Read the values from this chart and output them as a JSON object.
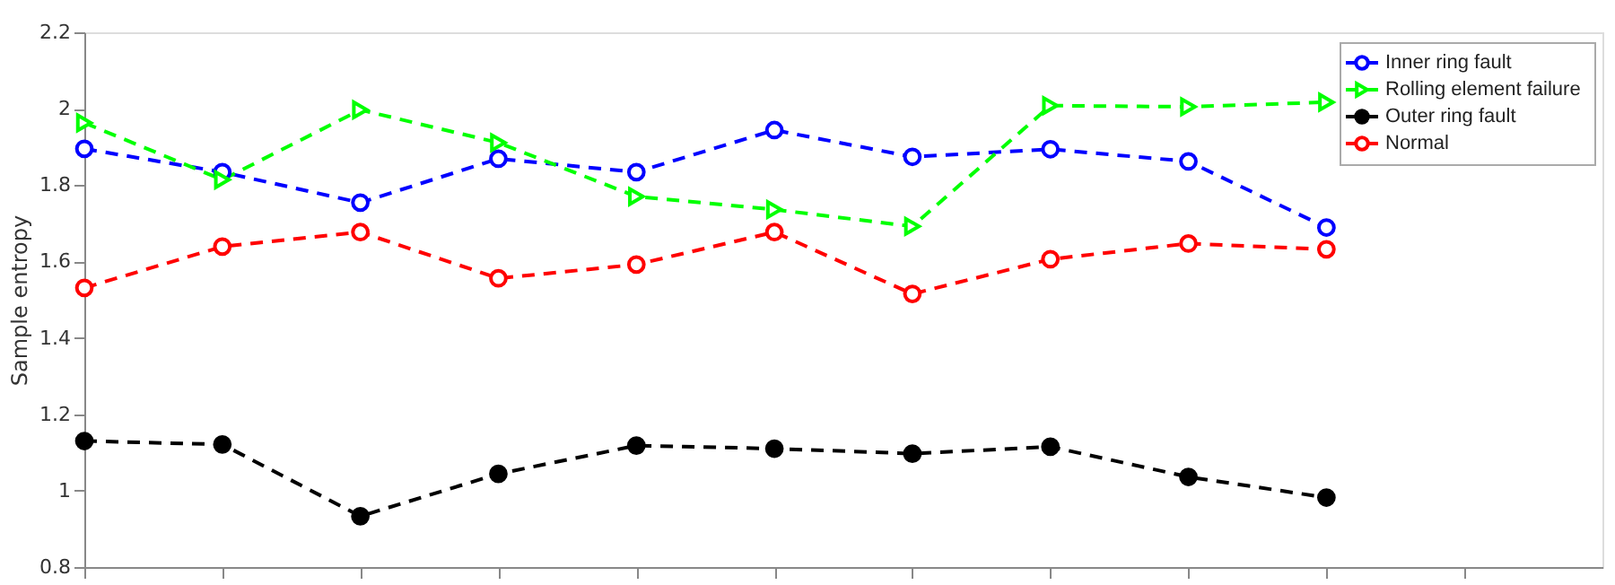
{
  "chart_data": {
    "type": "line",
    "ylabel": "Sample entropy",
    "categories": [
      null,
      null,
      null,
      null,
      null,
      null,
      null,
      null,
      null,
      null
    ],
    "ylim": [
      0.8,
      2.2
    ],
    "yticks": [
      0.8,
      1,
      1.2,
      1.4,
      1.6,
      1.8,
      2,
      2.2
    ],
    "tick_labels": "y",
    "legend": "top right",
    "line_style": "dashed",
    "series": [
      {
        "name": "Inner ring fault",
        "color": "#0000ff",
        "marker": "circle",
        "values": [
          1.895,
          1.834,
          1.754,
          1.869,
          1.834,
          1.944,
          1.874,
          1.894,
          1.862,
          1.689
        ]
      },
      {
        "name": "Rolling element failure",
        "color": "#00ff00",
        "marker": "triangle",
        "values": [
          1.963,
          1.814,
          1.997,
          1.911,
          1.77,
          1.736,
          1.692,
          2.008,
          2.005,
          2.017
        ]
      },
      {
        "name": "Outer ring fault",
        "color": "#000000",
        "marker": "filled_circle",
        "values": [
          1.13,
          1.121,
          0.933,
          1.044,
          1.118,
          1.11,
          1.097,
          1.115,
          1.036,
          0.982
        ]
      },
      {
        "name": "Normal",
        "color": "#ff0000",
        "marker": "circle",
        "values": [
          1.531,
          1.639,
          1.677,
          1.556,
          1.592,
          1.677,
          1.515,
          1.606,
          1.647,
          1.632
        ]
      }
    ]
  }
}
